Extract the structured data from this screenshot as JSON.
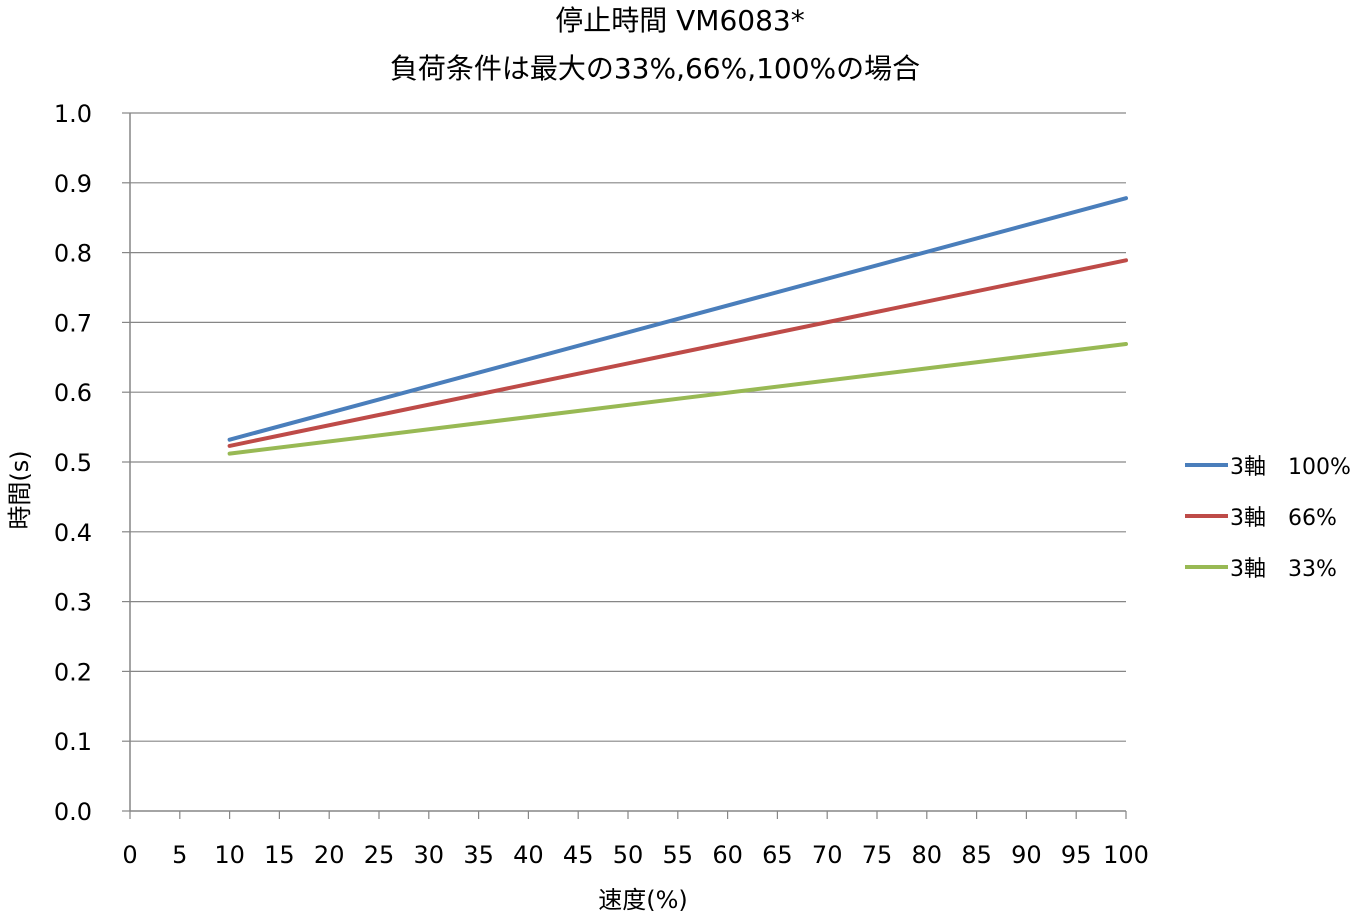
{
  "chart_data": {
    "type": "line",
    "title": "停止時間 VM6083*",
    "subtitle": "負荷条件は最大の33%,66%,100%の場合",
    "xlabel": "速度(%)",
    "ylabel": "時間(s)",
    "xlim": [
      0,
      100
    ],
    "ylim": [
      0.0,
      1.0
    ],
    "x_ticks": [
      "0",
      "5",
      "10",
      "15",
      "20",
      "25",
      "30",
      "35",
      "40",
      "45",
      "50",
      "55",
      "60",
      "65",
      "70",
      "75",
      "80",
      "85",
      "90",
      "95",
      "100"
    ],
    "y_ticks": [
      "0.0",
      "0.1",
      "0.2",
      "0.3",
      "0.4",
      "0.5",
      "0.6",
      "0.7",
      "0.8",
      "0.9",
      "1.0"
    ],
    "grid": "horizontal",
    "legend_position": "right",
    "series": [
      {
        "name": "3軸　100%",
        "color": "#4a7ebb",
        "x": [
          10,
          100
        ],
        "y": [
          0.532,
          0.878
        ]
      },
      {
        "name": "3軸　66%",
        "color": "#be4b48",
        "x": [
          10,
          100
        ],
        "y": [
          0.523,
          0.789
        ]
      },
      {
        "name": "3軸　33%",
        "color": "#98b954",
        "x": [
          10,
          100
        ],
        "y": [
          0.512,
          0.669
        ]
      }
    ]
  }
}
